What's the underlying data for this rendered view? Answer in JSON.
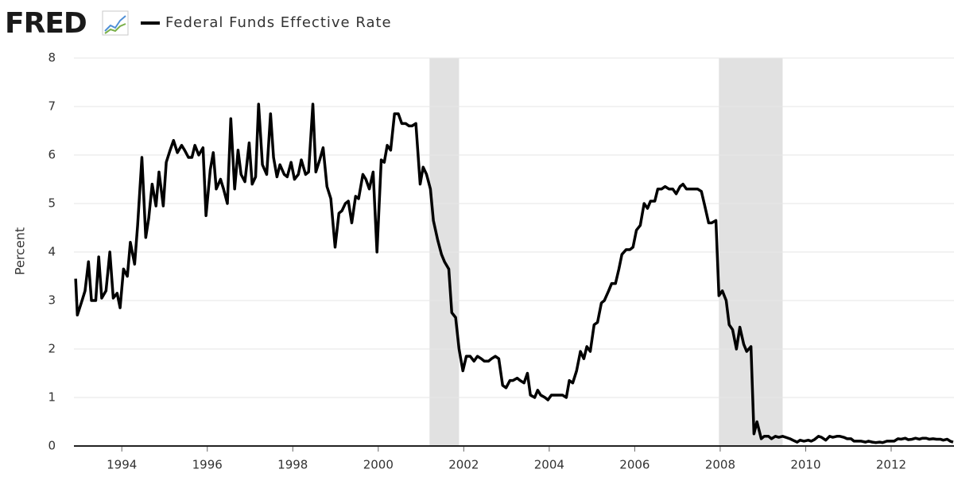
{
  "chart_data": {
    "type": "line",
    "logo": "FRED",
    "y_label": "Percent",
    "xlim": [
      1992.88,
      2013.47
    ],
    "xticks": [
      1994,
      1996,
      1998,
      2000,
      2002,
      2004,
      2006,
      2008,
      2010,
      2012
    ],
    "ylim": [
      0,
      8
    ],
    "yticks": [
      0,
      1,
      2,
      3,
      4,
      5,
      6,
      7,
      8
    ],
    "grid": true,
    "shaded_periods": [
      [
        2001.2,
        2001.89
      ],
      [
        2007.97,
        2009.46
      ]
    ],
    "shade_color": "#e1e1e1",
    "x": [
      1992.92,
      1992.96,
      1993.07,
      1993.14,
      1993.22,
      1993.29,
      1993.39,
      1993.46,
      1993.53,
      1993.63,
      1993.72,
      1993.8,
      1993.89,
      1993.96,
      1994.04,
      1994.13,
      1994.2,
      1994.3,
      1994.37,
      1994.47,
      1994.56,
      1994.63,
      1994.71,
      1994.8,
      1994.87,
      1994.97,
      1995.04,
      1995.13,
      1995.21,
      1995.3,
      1995.4,
      1995.47,
      1995.56,
      1995.64,
      1995.71,
      1995.8,
      1995.9,
      1995.97,
      1996.07,
      1996.14,
      1996.21,
      1996.31,
      1996.38,
      1996.47,
      1996.55,
      1996.64,
      1996.72,
      1996.79,
      1996.88,
      1996.98,
      1997.05,
      1997.13,
      1997.2,
      1997.29,
      1997.39,
      1997.48,
      1997.55,
      1997.63,
      1997.7,
      1997.8,
      1997.87,
      1997.96,
      1998.04,
      1998.13,
      1998.2,
      1998.3,
      1998.37,
      1998.47,
      1998.54,
      1998.63,
      1998.71,
      1998.8,
      1998.89,
      1998.99,
      1999.08,
      1999.15,
      1999.23,
      1999.3,
      1999.38,
      1999.47,
      1999.54,
      1999.64,
      1999.71,
      1999.79,
      1999.88,
      1999.97,
      2000.07,
      2000.14,
      2000.21,
      2000.29,
      2000.38,
      2000.47,
      2000.55,
      2000.64,
      2000.72,
      2000.79,
      2000.88,
      2000.98,
      2001.05,
      2001.13,
      2001.22,
      2001.29,
      2001.39,
      2001.48,
      2001.55,
      2001.65,
      2001.72,
      2001.81,
      2001.89,
      2001.98,
      2002.06,
      2002.15,
      2002.24,
      2002.32,
      2002.41,
      2002.48,
      2002.58,
      2002.65,
      2002.74,
      2002.82,
      2002.91,
      2002.99,
      2003.08,
      2003.15,
      2003.25,
      2003.32,
      2003.41,
      2003.49,
      2003.56,
      2003.66,
      2003.73,
      2003.8,
      2003.9,
      2003.97,
      2004.05,
      2004.14,
      2004.23,
      2004.31,
      2004.4,
      2004.47,
      2004.55,
      2004.64,
      2004.73,
      2004.81,
      2004.88,
      2004.96,
      2005.05,
      2005.13,
      2005.22,
      2005.29,
      2005.39,
      2005.46,
      2005.55,
      2005.63,
      2005.7,
      2005.8,
      2005.89,
      2005.96,
      2006.04,
      2006.13,
      2006.22,
      2006.3,
      2006.37,
      2006.47,
      2006.54,
      2006.63,
      2006.71,
      2006.8,
      2006.89,
      2006.97,
      2007.06,
      2007.13,
      2007.21,
      2007.3,
      2007.4,
      2007.47,
      2007.56,
      2007.64,
      2007.73,
      2007.8,
      2007.9,
      2007.97,
      2008.05,
      2008.14,
      2008.21,
      2008.29,
      2008.38,
      2008.46,
      2008.55,
      2008.62,
      2008.72,
      2008.79,
      2008.86,
      2008.96,
      2009.03,
      2009.13,
      2009.2,
      2009.29,
      2009.37,
      2009.46,
      2009.53,
      2009.63,
      2009.7,
      2009.8,
      2009.87,
      2009.96,
      2010.06,
      2010.13,
      2010.2,
      2010.3,
      2010.37,
      2010.47,
      2010.56,
      2010.63,
      2010.73,
      2010.8,
      2010.89,
      2010.97,
      2011.06,
      2011.13,
      2011.23,
      2011.3,
      2011.4,
      2011.47,
      2011.56,
      2011.64,
      2011.73,
      2011.8,
      2011.9,
      2012.0,
      2012.07,
      2012.16,
      2012.23,
      2012.33,
      2012.4,
      2012.49,
      2012.57,
      2012.66,
      2012.73,
      2012.82,
      2012.89,
      2012.98,
      2013.06,
      2013.15,
      2013.22,
      2013.31,
      2013.38,
      2013.45
    ],
    "series": [
      {
        "name": "Federal Funds Effective Rate",
        "color": "#000000",
        "values": [
          3.45,
          2.7,
          3.0,
          3.2,
          3.8,
          3.0,
          3.0,
          3.9,
          3.05,
          3.2,
          4.0,
          3.05,
          3.15,
          2.85,
          3.65,
          3.5,
          4.2,
          3.75,
          4.55,
          5.95,
          4.3,
          4.7,
          5.4,
          4.95,
          5.65,
          4.95,
          5.85,
          6.1,
          6.3,
          6.05,
          6.2,
          6.1,
          5.95,
          5.95,
          6.2,
          6.0,
          6.15,
          4.75,
          5.7,
          6.05,
          5.3,
          5.5,
          5.3,
          5.0,
          6.75,
          5.3,
          6.1,
          5.6,
          5.45,
          6.25,
          5.4,
          5.55,
          7.05,
          5.8,
          5.6,
          6.85,
          5.95,
          5.55,
          5.8,
          5.6,
          5.55,
          5.85,
          5.5,
          5.6,
          5.9,
          5.6,
          5.65,
          7.05,
          5.65,
          5.9,
          6.15,
          5.35,
          5.1,
          4.1,
          4.8,
          4.85,
          5.0,
          5.05,
          4.6,
          5.15,
          5.1,
          5.6,
          5.5,
          5.3,
          5.65,
          4.0,
          5.9,
          5.85,
          6.2,
          6.1,
          6.85,
          6.85,
          6.65,
          6.65,
          6.6,
          6.6,
          6.65,
          5.4,
          5.75,
          5.6,
          5.3,
          4.65,
          4.25,
          3.95,
          3.8,
          3.65,
          2.75,
          2.65,
          2.0,
          1.55,
          1.85,
          1.85,
          1.75,
          1.85,
          1.8,
          1.75,
          1.75,
          1.8,
          1.85,
          1.8,
          1.25,
          1.2,
          1.35,
          1.35,
          1.4,
          1.35,
          1.3,
          1.5,
          1.05,
          1.0,
          1.15,
          1.05,
          1.0,
          0.95,
          1.05,
          1.05,
          1.05,
          1.05,
          1.0,
          1.35,
          1.3,
          1.55,
          1.95,
          1.8,
          2.05,
          1.95,
          2.5,
          2.55,
          2.95,
          3.0,
          3.2,
          3.35,
          3.35,
          3.65,
          3.95,
          4.05,
          4.05,
          4.1,
          4.45,
          4.55,
          5.0,
          4.9,
          5.05,
          5.05,
          5.3,
          5.3,
          5.35,
          5.3,
          5.3,
          5.2,
          5.35,
          5.4,
          5.3,
          5.3,
          5.3,
          5.3,
          5.25,
          4.95,
          4.6,
          4.6,
          4.65,
          3.1,
          3.2,
          3.0,
          2.5,
          2.4,
          2.0,
          2.45,
          2.1,
          1.95,
          2.05,
          0.25,
          0.5,
          0.15,
          0.2,
          0.2,
          0.15,
          0.2,
          0.18,
          0.2,
          0.18,
          0.15,
          0.12,
          0.08,
          0.12,
          0.1,
          0.12,
          0.1,
          0.13,
          0.2,
          0.18,
          0.12,
          0.2,
          0.18,
          0.2,
          0.2,
          0.18,
          0.15,
          0.15,
          0.1,
          0.1,
          0.1,
          0.08,
          0.1,
          0.08,
          0.07,
          0.08,
          0.07,
          0.1,
          0.1,
          0.1,
          0.15,
          0.14,
          0.16,
          0.13,
          0.14,
          0.16,
          0.14,
          0.16,
          0.16,
          0.14,
          0.15,
          0.14,
          0.14,
          0.12,
          0.14,
          0.1,
          0.08
        ]
      }
    ]
  }
}
